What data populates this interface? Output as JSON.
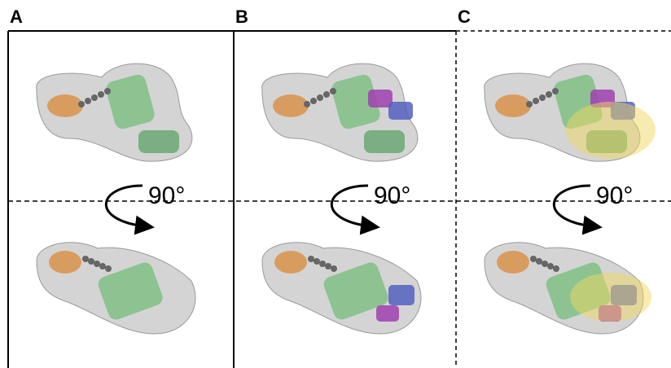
{
  "panels": [
    {
      "label": "A",
      "rotation": "90°"
    },
    {
      "label": "B",
      "rotation": "90°"
    },
    {
      "label": "C",
      "rotation": "90°"
    }
  ]
}
